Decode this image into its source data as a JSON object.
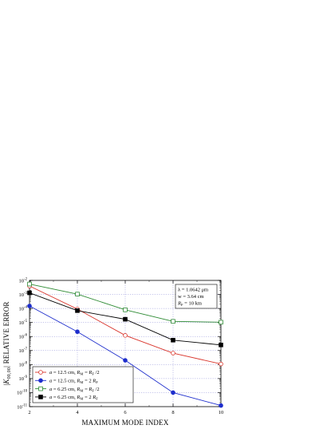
{
  "chart_data": {
    "type": "line",
    "xlabel": "MAXIMUM MODE INDEX",
    "ylabel": "|K00,00| RELATIVE ERROR",
    "ylabel_main": "K",
    "ylabel_sub": "00,00",
    "ylabel_rest": " RELATIVE ERROR",
    "x": [
      2,
      4,
      6,
      8,
      10
    ],
    "x_ticks": [
      "2",
      "4",
      "6",
      "8",
      "10"
    ],
    "xlim": [
      2,
      10
    ],
    "ylim_exp": [
      -11,
      -2
    ],
    "y_scale": "log",
    "y_tick_base": "10",
    "y_tick_exponents": [
      "-2",
      "-3",
      "-4",
      "-5",
      "-6",
      "-7",
      "-8",
      "-9",
      "-10",
      "-11"
    ],
    "grid": true,
    "legend_position": "bottom-left",
    "series": [
      {
        "name": "a = 12.5 cm, RM = RF /2",
        "lbl": [
          "a",
          " = 12.5 cm, ",
          "R",
          "M",
          " = ",
          "R",
          "F",
          " /2"
        ],
        "color": "#d9342b",
        "marker": "circle-open",
        "values": [
          0.004,
          9e-05,
          1.2e-06,
          6.5e-08,
          1.1e-08
        ]
      },
      {
        "name": "a = 12.5 cm, RM = 2 RF",
        "lbl": [
          "a",
          " = 12.5 cm, ",
          "R",
          "M",
          " = 2 ",
          "R",
          "F",
          ""
        ],
        "color": "#1d2dcc",
        "marker": "circle-filled",
        "values": [
          0.00015,
          2.2e-06,
          2e-08,
          1e-10,
          1.2e-11
        ]
      },
      {
        "name": "a = 6.25 cm, RM = RF /2",
        "lbl": [
          "a",
          " = 6.25 cm, ",
          "R",
          "M",
          " = ",
          "R",
          "F",
          " /2"
        ],
        "color": "#2e8b34",
        "marker": "square-open",
        "values": [
          0.0055,
          0.00105,
          8e-05,
          1.2e-05,
          1.05e-05
        ]
      },
      {
        "name": "a = 6.25 cm, RM = 2 RF",
        "lbl": [
          "a",
          " = 6.25 cm, ",
          "R",
          "M",
          " = 2 ",
          "R",
          "F",
          ""
        ],
        "color": "#000000",
        "marker": "square-filled",
        "values": [
          0.0013,
          7e-05,
          1.7e-05,
          5.5e-07,
          2.5e-07
        ]
      }
    ],
    "annotation": {
      "line1": "λ = 1.0642 μm",
      "line2": "w = 3.64 cm",
      "line3_main": "R",
      "line3_sub": "F",
      "line3_rest": " = 10 km"
    }
  }
}
